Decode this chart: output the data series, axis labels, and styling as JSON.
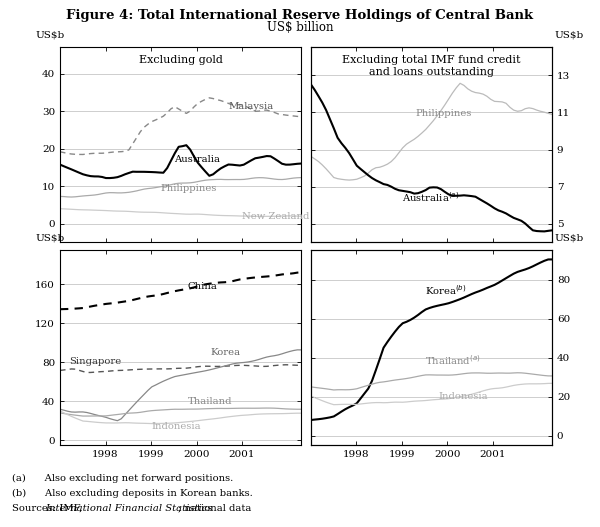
{
  "title": "Figure 4: Total International Reserve Holdings of Central Bank",
  "subtitle": "US$ billion",
  "footnote_a": "(a)      Also excluding net forward positions.",
  "footnote_b": "(b)      Also excluding deposits in Korean banks.",
  "source_pre": "Sources: IMF, ",
  "source_italic": "International Financial Statistics",
  "source_post": "; national data",
  "top_left": {
    "title": "Excluding gold",
    "ylabel_left": "US$b",
    "ylim": [
      -5,
      47
    ],
    "yticks": [
      0,
      10,
      20,
      30,
      40
    ]
  },
  "top_right": {
    "title": "Excluding total IMF fund credit\nand loans outstanding",
    "ylabel_right": "US$b",
    "ylim": [
      4.0,
      14.5
    ],
    "yticks": [
      5,
      7,
      9,
      11,
      13
    ]
  },
  "bottom_left": {
    "ylabel_left": "US$b",
    "ylim": [
      -5,
      195
    ],
    "yticks": [
      0,
      40,
      80,
      120,
      160
    ]
  },
  "bottom_right": {
    "ylabel_right": "US$b",
    "ylim": [
      -5,
      95
    ],
    "yticks": [
      0,
      20,
      40,
      60,
      80
    ]
  },
  "xmin": 1997.0,
  "xmax": 2002.3,
  "xticks": [
    1998,
    1999,
    2000,
    2001
  ],
  "grid_color": "#bbbbbb",
  "line_colors": {
    "dark_gray": "#777777",
    "mid_gray": "#999999",
    "light_gray": "#bbbbbb",
    "black": "#000000"
  }
}
